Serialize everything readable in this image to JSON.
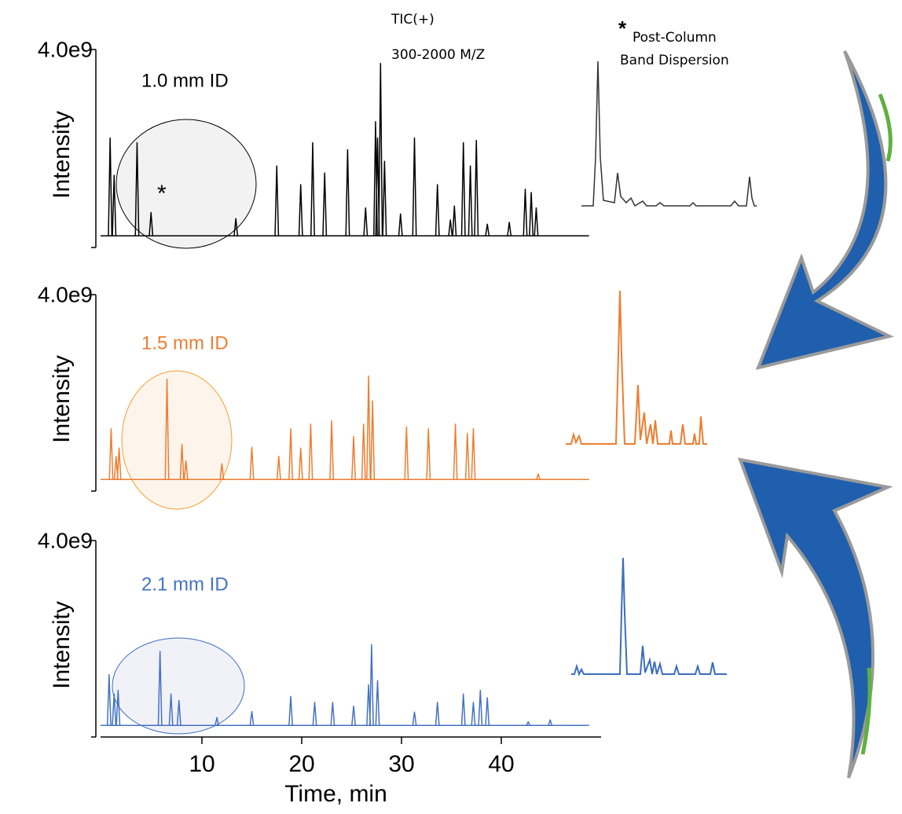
{
  "header": {
    "line1": "TIC(+)",
    "line2": "300-2000 M/Z"
  },
  "note": {
    "mark": "*",
    "lines": [
      "Post-Column",
      "Band Dispersion"
    ]
  },
  "chart_data": [
    {
      "type": "chromatogram",
      "label": "1.0 mm ID",
      "annotation": "*",
      "color": "#000000",
      "ylabel": "Intensity",
      "ylim": [
        -250000000.0,
        4000000000.0
      ],
      "yticks": [
        {
          "value": 4000000000.0,
          "label": "4.0e9"
        }
      ],
      "xlim": [
        0,
        50
      ],
      "peaks": {
        "x": [
          0.8,
          1.2,
          3.5,
          4.9,
          13.4,
          17.5,
          19.9,
          21.1,
          22.3,
          24.6,
          26.4,
          27.4,
          27.6,
          27.9,
          28.3,
          29.9,
          31.3,
          33.6,
          34.9,
          35.3,
          36.2,
          36.9,
          37.5,
          38.6,
          40.8,
          42.4,
          43.0,
          43.5
        ],
        "values": [
          2100000000.0,
          1300000000.0,
          2000000000.0,
          500000000.0,
          370000000.0,
          1500000000.0,
          1100000000.0,
          2000000000.0,
          1350000000.0,
          1850000000.0,
          600000000.0,
          2450000000.0,
          2100000000.0,
          3700000000.0,
          1600000000.0,
          470000000.0,
          2100000000.0,
          1100000000.0,
          340000000.0,
          640000000.0,
          2000000000.0,
          1500000000.0,
          2050000000.0,
          250000000.0,
          290000000.0,
          1000000000.0,
          930000000.0,
          600000000.0
        ]
      }
    },
    {
      "type": "chromatogram",
      "label": "1.5 mm ID",
      "color": "#ed7d31",
      "ylabel": "Intensity",
      "ylim": [
        -250000000.0,
        4000000000.0
      ],
      "yticks": [
        {
          "value": 4000000000.0,
          "label": "4.0e9"
        }
      ],
      "xlim": [
        0,
        50
      ],
      "peaks": {
        "x": [
          0.9,
          1.4,
          1.7,
          6.5,
          8.0,
          8.4,
          12.0,
          15.0,
          17.7,
          18.9,
          19.9,
          20.9,
          23.0,
          25.2,
          26.2,
          26.7,
          27.1,
          30.5,
          32.7,
          35.4,
          36.6,
          37.2,
          43.7
        ],
        "values": [
          1100000000.0,
          500000000.0,
          680000000.0,
          2170000000.0,
          760000000.0,
          400000000.0,
          340000000.0,
          700000000.0,
          500000000.0,
          1100000000.0,
          680000000.0,
          1200000000.0,
          1270000000.0,
          930000000.0,
          1200000000.0,
          2240000000.0,
          1700000000.0,
          1140000000.0,
          1100000000.0,
          1200000000.0,
          1000000000.0,
          1100000000.0,
          120000000.0
        ]
      }
    },
    {
      "type": "chromatogram",
      "label": "2.1 mm ID",
      "color": "#4472c4",
      "ylabel": "Intensity",
      "ylim": [
        -250000000.0,
        4000000000.0
      ],
      "yticks": [
        {
          "value": 4000000000.0,
          "label": "4.0e9"
        }
      ],
      "xlim": [
        0,
        50
      ],
      "xlabel": "Time, min",
      "xticks": [
        10,
        20,
        30,
        40
      ],
      "peaks": {
        "x": [
          0.7,
          1.2,
          1.6,
          5.8,
          6.9,
          7.7,
          11.5,
          15.0,
          18.9,
          21.3,
          23.1,
          25.2,
          26.7,
          27.0,
          27.6,
          31.3,
          33.6,
          36.2,
          37.2,
          37.9,
          38.6,
          42.7,
          44.9
        ],
        "values": [
          1100000000.0,
          680000000.0,
          760000000.0,
          1600000000.0,
          680000000.0,
          540000000.0,
          170000000.0,
          300000000.0,
          630000000.0,
          500000000.0,
          500000000.0,
          420000000.0,
          880000000.0,
          1750000000.0,
          970000000.0,
          290000000.0,
          500000000.0,
          680000000.0,
          500000000.0,
          760000000.0,
          600000000.0,
          80000000.0,
          120000000.0
        ]
      }
    }
  ]
}
